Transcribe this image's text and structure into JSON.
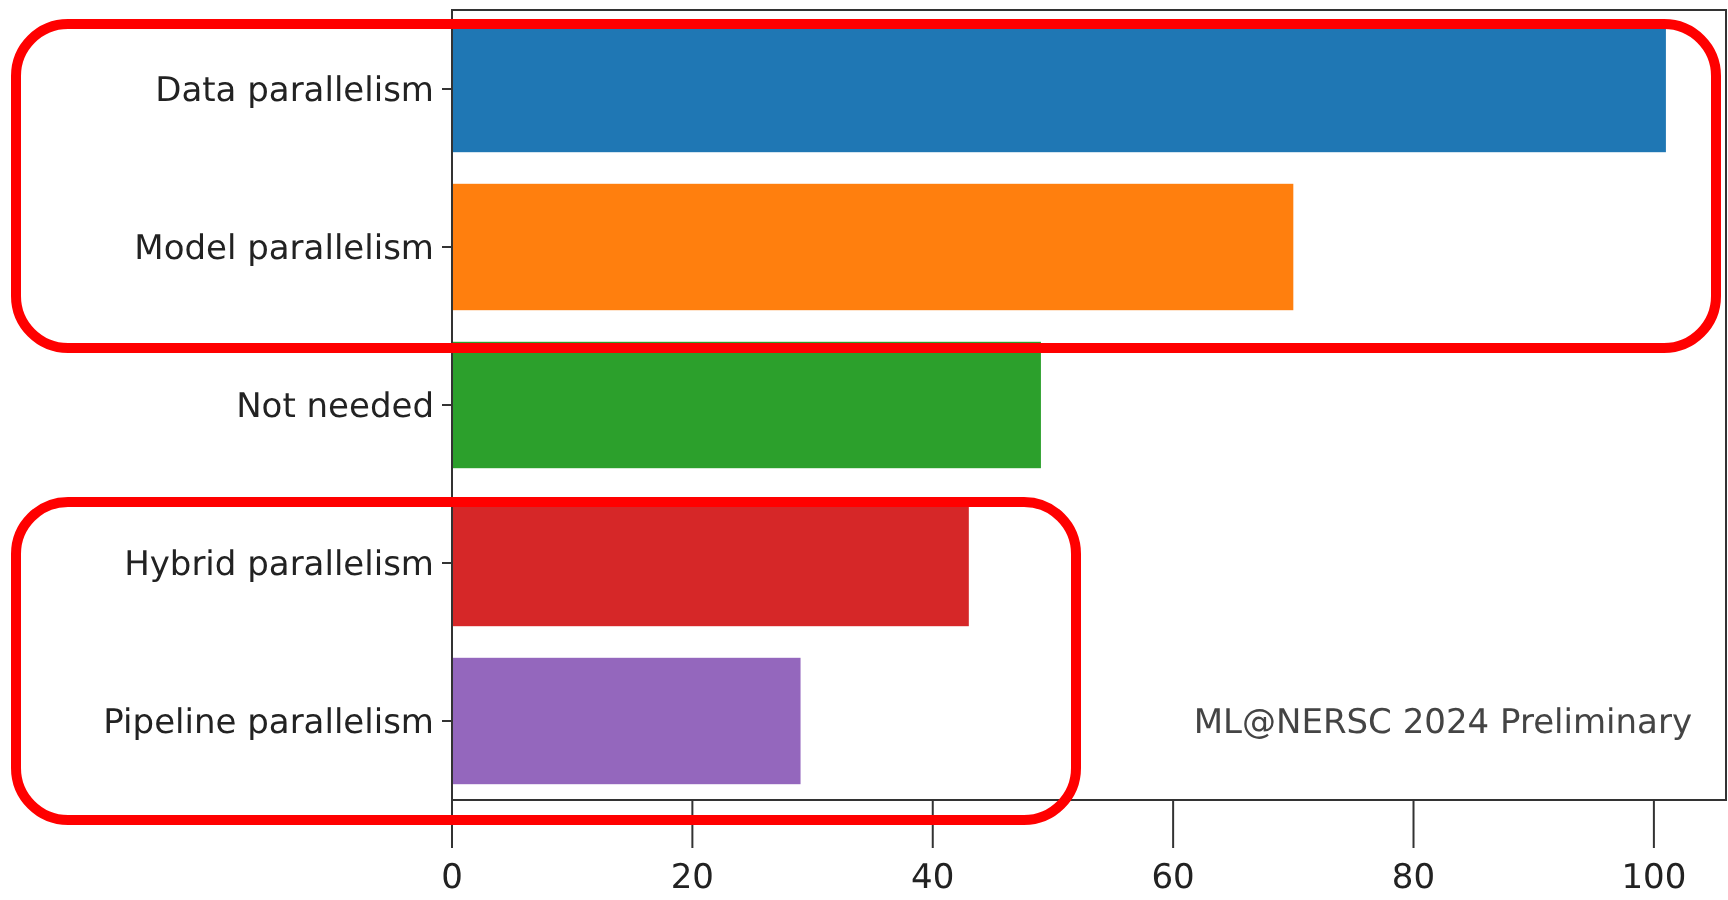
{
  "chart_data": {
    "type": "bar",
    "orientation": "horizontal",
    "categories": [
      "Data parallelism",
      "Model parallelism",
      "Not needed",
      "Hybrid parallelism",
      "Pipeline parallelism"
    ],
    "values": [
      101,
      70,
      49,
      43,
      29
    ],
    "colors": [
      "#1f77b4",
      "#ff7f0e",
      "#2ca02c",
      "#d62728",
      "#9467bd"
    ],
    "xlim": [
      0,
      106
    ],
    "xticks": [
      0,
      20,
      40,
      60,
      80,
      100
    ],
    "annotations": [
      "ML@NERSC 2024 Preliminary"
    ]
  }
}
